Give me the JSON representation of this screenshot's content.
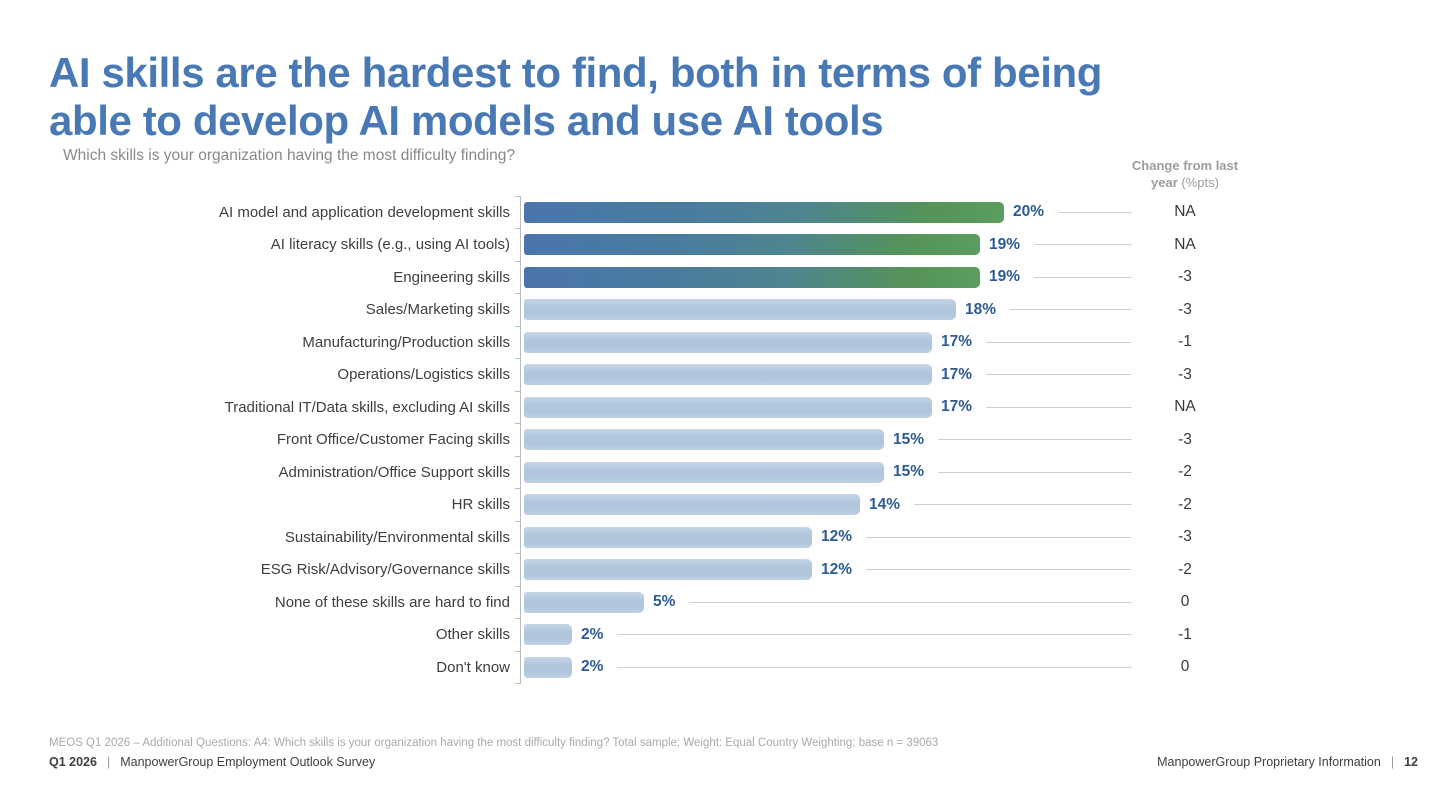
{
  "title_line1": "AI skills are the hardest to find, both in terms of being",
  "title_line2": "able to develop AI models and use AI tools",
  "question": "Which skills is your organization having the most difficulty finding?",
  "change_header": {
    "line1": "Change from last",
    "line2_bold": "year",
    "line2_normal": "(%pts)"
  },
  "chart_data": {
    "type": "bar",
    "orientation": "horizontal",
    "title": "Which skills is your organization having the most difficulty finding?",
    "xlim": [
      0,
      20
    ],
    "grid": false,
    "legend": "none",
    "categories": [
      "AI model and application development skills",
      "AI literacy skills (e.g., using AI tools)",
      "Engineering skills",
      "Sales/Marketing skills",
      "Manufacturing/Production skills",
      "Operations/Logistics skills",
      "Traditional IT/Data skills, excluding AI skills",
      "Front Office/Customer Facing skills",
      "Administration/Office Support skills",
      "HR skills",
      "Sustainability/Environmental skills",
      "ESG Risk/Advisory/Governance skills",
      "None of these skills are hard to find",
      "Other skills",
      "Don't know"
    ],
    "values": [
      20,
      19,
      19,
      18,
      17,
      17,
      17,
      15,
      15,
      14,
      12,
      12,
      5,
      2,
      2
    ],
    "value_labels": [
      "20%",
      "19%",
      "19%",
      "18%",
      "17%",
      "17%",
      "17%",
      "15%",
      "15%",
      "14%",
      "12%",
      "12%",
      "5%",
      "2%",
      "2%"
    ],
    "change_from_last_year": [
      "NA",
      "NA",
      "-3",
      "-3",
      "-1",
      "-3",
      "NA",
      "-3",
      "-2",
      "-2",
      "-3",
      "-2",
      "0",
      "-1",
      "0"
    ],
    "highlighted_rows": [
      0,
      1,
      2
    ],
    "colors": {
      "highlight_gradient_start": "#4a75ac",
      "highlight_gradient_end": "#5c9c60",
      "bar_light_blue": "#b2c7de",
      "value_label": "#2d5b92",
      "title_blue": "#4879b5",
      "axis_gray": "#b9bdc2",
      "leader_line": "#cdd0d3",
      "change_text": "#39393b"
    }
  },
  "footnote": "MEOS Q1 2026 – Additional Questions: A4: Which skills is your organization having the most difficulty finding? Total sample; Weight: Equal Country Weighting; base n = 39063",
  "footer": {
    "left_bold": "Q1 2026",
    "left_sep": "|",
    "left_text": "ManpowerGroup Employment Outlook Survey",
    "right_text": "ManpowerGroup Proprietary Information",
    "right_sep": "|",
    "right_bold": "12"
  }
}
